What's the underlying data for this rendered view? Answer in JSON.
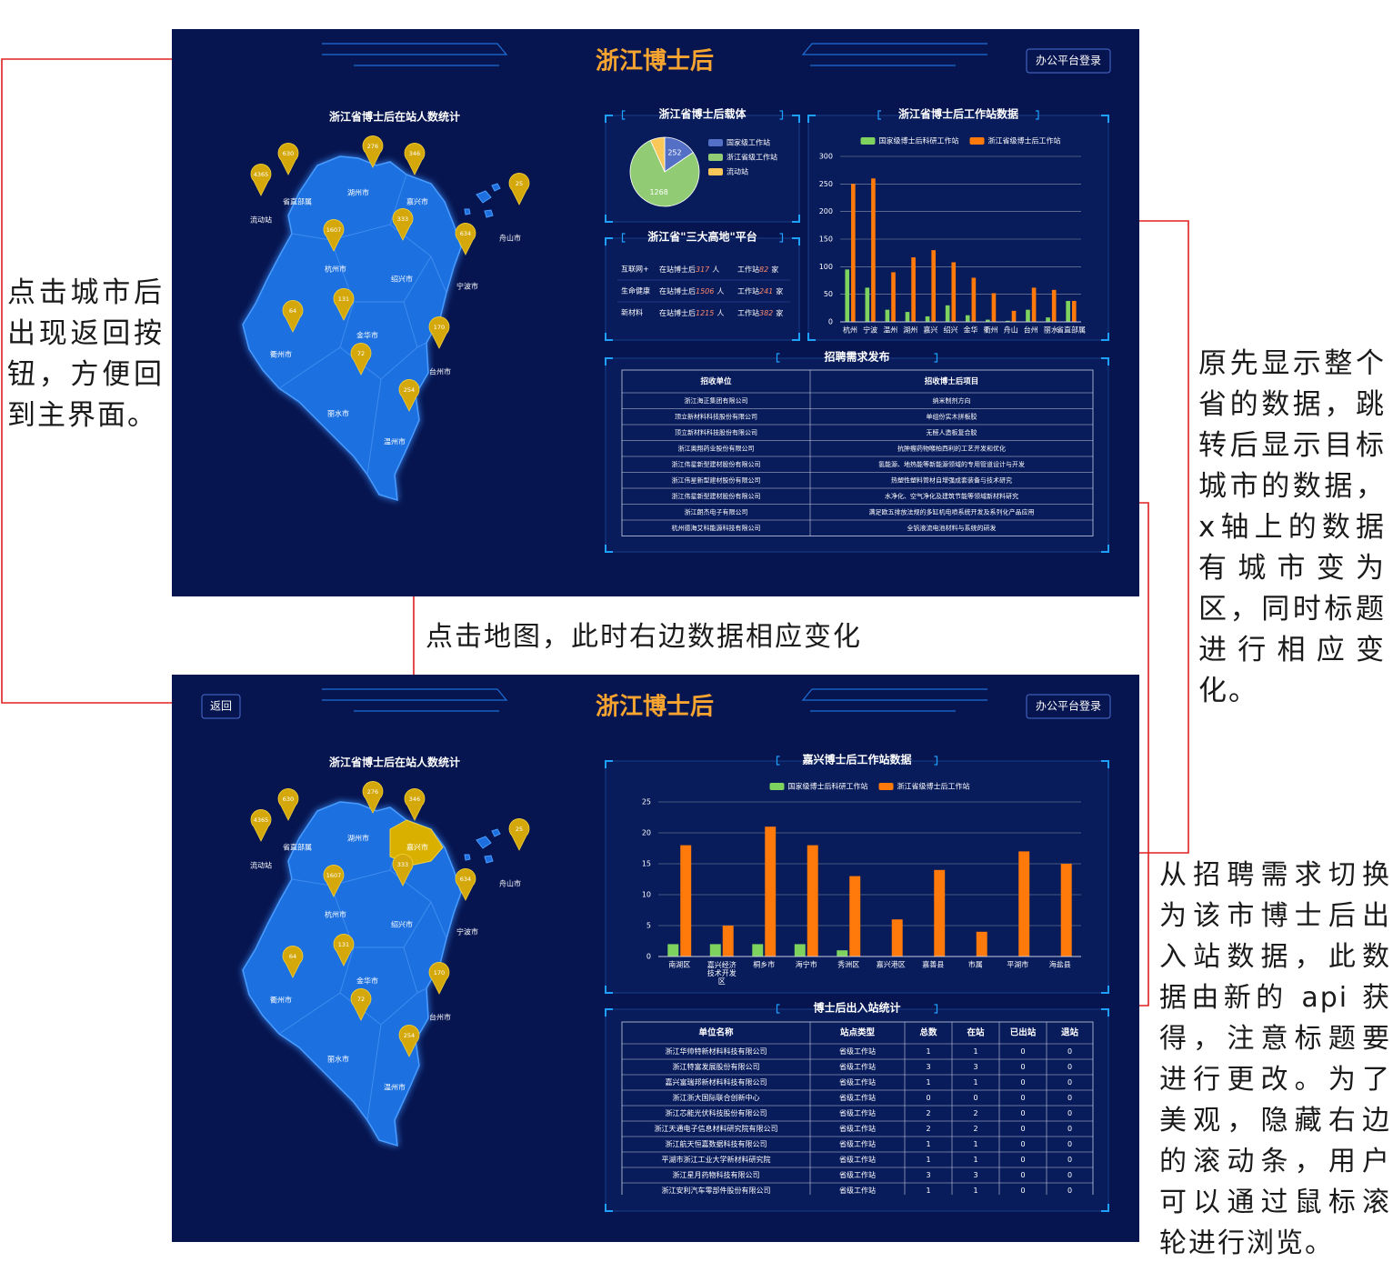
{
  "annotations": {
    "back": "点击城市后出现返回按钮，方便回到主界面。",
    "map_click": "点击地图，此时右边数据相应变化",
    "chart_change": "原先显示整个省的数据，跳转后显示目标城市的数据，x轴上的数据有城市变为区，同时标题进行相应变化。",
    "table_change": "从招聘需求切换为该市博士后出入站数据，此数据由新的 api 获得，注意标题要进行更改。为了美观，隐藏右边的滚动条，用户可以通过鼠标滚轮进行浏览。"
  },
  "header": {
    "title": "浙江博士后",
    "login": "办公平台登录",
    "back": "返回"
  },
  "map": {
    "title": "浙江省博士后在站人数统计",
    "pins": [
      {
        "name": "流动站",
        "value": 4365
      },
      {
        "name": "省直部属",
        "value": 630
      },
      {
        "name": "湖州市",
        "value": 276
      },
      {
        "name": "嘉兴市",
        "value": 346
      },
      {
        "name": "舟山市",
        "value": 25
      },
      {
        "name": "杭州市",
        "value": 1607
      },
      {
        "name": "绍兴市",
        "value": 333
      },
      {
        "name": "宁波市",
        "value": 634
      },
      {
        "name": "衢州市",
        "value": 64
      },
      {
        "name": "金华市",
        "value": 131
      },
      {
        "name": "台州市",
        "value": 170
      },
      {
        "name": "丽水市",
        "value": 72
      },
      {
        "name": "温州市",
        "value": 254
      }
    ]
  },
  "platform": {
    "title": "浙江省\"三大高地\"平台",
    "postdoc_label": "在站博士后",
    "person_unit": "人",
    "station_label": "工作站",
    "station_unit": "家",
    "rows": [
      {
        "name": "互联网+",
        "postdocs": 317,
        "stations": 82
      },
      {
        "name": "生命健康",
        "postdocs": 1506,
        "stations": 241
      },
      {
        "name": "新材料",
        "postdocs": 1215,
        "stations": 382
      }
    ]
  },
  "recruit": {
    "title": "招聘需求发布",
    "columns": [
      "招收单位",
      "招收博士后项目"
    ],
    "rows": [
      [
        "浙江海正集团有限公司",
        "纳米制剂方向"
      ],
      [
        "顶立新材料科技股份有限公司",
        "单组份实木拼板胶"
      ],
      [
        "顶立新材料科技股份有限公司",
        "无醛人造板复合胶"
      ],
      [
        "浙江奥翔药业股份有限公司",
        "抗肿瘤药物喉柏西利的工艺开发和优化"
      ],
      [
        "浙江伟星新型建材股份有限公司",
        "氢能源、地热能等新能源领域的专用管道设计与开发"
      ],
      [
        "浙江伟星新型建材股份有限公司",
        "热塑性塑料管材自增强成套装备与技术研究"
      ],
      [
        "浙江伟星新型建材股份有限公司",
        "水净化、空气净化及建筑节能等领域新材料研究"
      ],
      [
        "浙江朗杰电子有限公司",
        "满足欧五排放法规的多缸机电喷系统开发及系列化产品应用"
      ],
      [
        "杭州德海艾科能源科技有限公司",
        "全钒液流电池材料与系统的研发"
      ]
    ]
  },
  "station_table": {
    "title": "博士后出入站统计",
    "columns": [
      "单位名称",
      "站点类型",
      "总数",
      "在站",
      "已出站",
      "退站"
    ],
    "rows": [
      [
        "浙江华帅特新材料科技有限公司",
        "省级工作站",
        1,
        1,
        0,
        0
      ],
      [
        "浙江特富发展股份有限公司",
        "省级工作站",
        3,
        3,
        0,
        0
      ],
      [
        "嘉兴富瑞邦新材料科技有限公司",
        "省级工作站",
        1,
        1,
        0,
        0
      ],
      [
        "浙江浙大国际联合创新中心",
        "省级工作站",
        0,
        0,
        0,
        0
      ],
      [
        "浙江芯能光伏科技股份有限公司",
        "省级工作站",
        2,
        2,
        0,
        0
      ],
      [
        "浙江天通电子信息材料研究院有限公司",
        "省级工作站",
        2,
        2,
        0,
        0
      ],
      [
        "浙江航天恒嘉数据科技有限公司",
        "省级工作站",
        1,
        1,
        0,
        0
      ],
      [
        "平湖市浙江工业大学新材料研究院",
        "省级工作站",
        1,
        1,
        0,
        0
      ],
      [
        "浙江星月药物科技有限公司",
        "省级工作站",
        3,
        3,
        0,
        0
      ],
      [
        "浙江安利汽车零部件股份有限公司",
        "省级工作站",
        1,
        1,
        0,
        0
      ]
    ]
  },
  "chart_data": [
    {
      "type": "pie",
      "title": "浙江省博士后载体",
      "categories": [
        "国家级工作站",
        "浙江省级工作站",
        "流动站"
      ],
      "values": [
        252,
        1268,
        110
      ],
      "colors": [
        "#5470c6",
        "#91cc75",
        "#fac858"
      ]
    },
    {
      "type": "bar",
      "title": "浙江省博士后工作站数据",
      "categories": [
        "杭州",
        "宁波",
        "温州",
        "湖州",
        "嘉兴",
        "绍兴",
        "金华",
        "衢州",
        "舟山",
        "台州",
        "丽水",
        "省直部属"
      ],
      "series": [
        {
          "name": "国家级博士后科研工作站",
          "color": "#7ed35f",
          "values": [
            95,
            62,
            22,
            18,
            10,
            30,
            12,
            4,
            2,
            22,
            8,
            38
          ]
        },
        {
          "name": "浙江省级博士后工作站",
          "color": "#ff7a0a",
          "values": [
            250,
            260,
            90,
            117,
            130,
            108,
            80,
            52,
            20,
            62,
            58,
            38
          ]
        }
      ],
      "ylim": [
        0,
        300
      ],
      "yticks": [
        0,
        50,
        100,
        150,
        200,
        250,
        300
      ],
      "grid": true,
      "legend": "top"
    },
    {
      "type": "bar",
      "title": "嘉兴博士后工作站数据",
      "categories": [
        "南湖区",
        "嘉兴经济技术开发区",
        "桐乡市",
        "海宁市",
        "秀洲区",
        "嘉兴港区",
        "嘉善县",
        "市属",
        "平湖市",
        "海盐县"
      ],
      "series": [
        {
          "name": "国家级博士后科研工作站",
          "color": "#7ed35f",
          "values": [
            2,
            2,
            2,
            2,
            1,
            0,
            0,
            0,
            0,
            0
          ]
        },
        {
          "name": "浙江省级博士后工作站",
          "color": "#ff7a0a",
          "values": [
            18,
            5,
            21,
            18,
            13,
            6,
            14,
            4,
            17,
            15
          ]
        }
      ],
      "ylim": [
        0,
        25
      ],
      "yticks": [
        0,
        5,
        10,
        15,
        20,
        25
      ],
      "grid": true,
      "legend": "top"
    }
  ]
}
